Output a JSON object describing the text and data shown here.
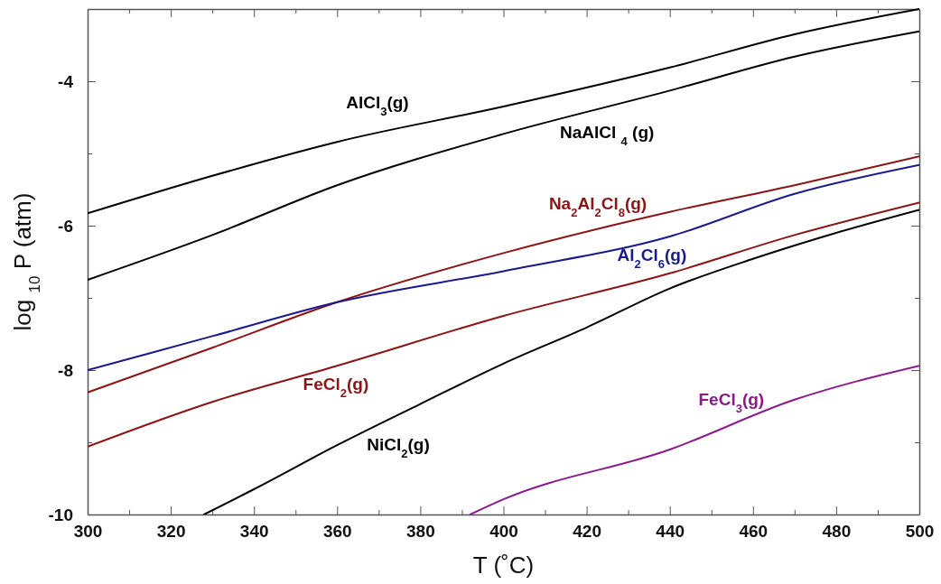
{
  "chart_data": {
    "type": "line",
    "xlabel": "T (˚C)",
    "ylabel": "log $_{10}$ P (atm)",
    "xlim": [
      300,
      500
    ],
    "ylim": [
      -10,
      -3
    ],
    "xticks": [
      300,
      {
        "value": 310,
        "label": null
      },
      320,
      {
        "value": 330,
        "label": null
      },
      340,
      {
        "value": 350,
        "label": null
      },
      360,
      {
        "value": 370,
        "label": null
      },
      380,
      {
        "value": 390,
        "label": null
      },
      400,
      {
        "value": 410,
        "label": null
      },
      420,
      {
        "value": 430,
        "label": null
      },
      440,
      {
        "value": 450,
        "label": null
      },
      460,
      {
        "value": 470,
        "label": null
      },
      480,
      {
        "value": 490,
        "label": null
      },
      500
    ],
    "yticks": [
      -10,
      {
        "value": -9,
        "label": null
      },
      -8,
      {
        "value": -7,
        "label": null
      },
      -6,
      {
        "value": -5,
        "label": null
      },
      -4
    ],
    "grid": false,
    "legend": false,
    "marker": "none",
    "line_style": "solid",
    "series": [
      {
        "name": "AlCl$_{3}$(g)",
        "color": "#000000",
        "x": [
          300,
          330,
          360,
          400,
          440,
          470,
          500
        ],
        "values": [
          -5.83,
          -5.31,
          -4.84,
          -4.35,
          -3.81,
          -3.35,
          -3.0
        ]
      },
      {
        "name": "NaAlCl $_{4}$ (g)",
        "color": "#000000",
        "x": [
          300,
          330,
          360,
          400,
          440,
          470,
          500
        ],
        "values": [
          -6.75,
          -6.13,
          -5.44,
          -4.73,
          -4.13,
          -3.66,
          -3.31
        ]
      },
      {
        "name": "Na$_{2}$Al$_{2}$Cl$_{8}$(g)",
        "color": "#8b1414",
        "x": [
          300,
          330,
          360,
          400,
          440,
          470,
          500
        ],
        "values": [
          -8.31,
          -7.69,
          -7.06,
          -6.38,
          -5.81,
          -5.44,
          -5.04
        ]
      },
      {
        "name": "Al$_{2}$Cl$_{6}$(g)",
        "color": "#1a1a8c",
        "x": [
          300,
          330,
          360,
          400,
          440,
          470,
          500
        ],
        "values": [
          -8.0,
          -7.53,
          -7.06,
          -6.63,
          -6.15,
          -5.56,
          -5.16
        ]
      },
      {
        "name": "FeCl$_{2}$(g)",
        "color": "#8b1414",
        "x": [
          300,
          330,
          360,
          400,
          440,
          470,
          500
        ],
        "values": [
          -9.06,
          -8.44,
          -7.94,
          -7.25,
          -6.66,
          -6.13,
          -5.68
        ]
      },
      {
        "name": "NiCl$_{2}$(g)",
        "color": "#000000",
        "x": [
          328,
          340,
          360,
          380,
          400,
          420,
          440,
          460,
          480,
          500
        ],
        "values": [
          -10.0,
          -9.65,
          -9.04,
          -8.47,
          -7.91,
          -7.41,
          -6.87,
          -6.46,
          -6.1,
          -5.78
        ]
      },
      {
        "name": "FeCl$_{3}$(g)",
        "color": "#8b1a8b",
        "x": [
          392,
          400,
          440,
          470,
          500
        ],
        "values": [
          -10.0,
          -9.79,
          -9.1,
          -8.41,
          -7.94
        ]
      }
    ]
  }
}
